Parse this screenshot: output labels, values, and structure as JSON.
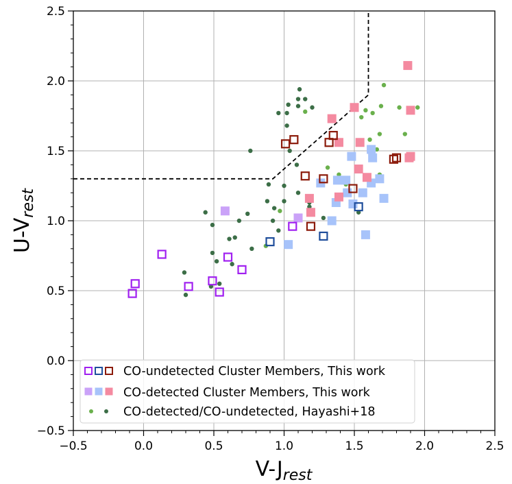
{
  "chart_data": {
    "type": "scatter",
    "title": "",
    "xlabel": {
      "main": "V-J",
      "sub": "rest"
    },
    "ylabel": {
      "main": "U-V",
      "sub": "rest"
    },
    "xlim": [
      -0.5,
      2.5
    ],
    "ylim": [
      -0.5,
      2.5
    ],
    "xticks": [
      -0.5,
      0.0,
      0.5,
      1.0,
      1.5,
      2.0,
      2.5
    ],
    "yticks": [
      -0.5,
      0.0,
      0.5,
      1.0,
      1.5,
      2.0,
      2.5
    ],
    "xtick_labels": [
      "−0.5",
      "0.0",
      "0.5",
      "1.0",
      "1.5",
      "2.0",
      "2.5"
    ],
    "ytick_labels": [
      "−0.5",
      "0.0",
      "0.5",
      "1.0",
      "1.5",
      "2.0",
      "2.5"
    ],
    "minor_tick_step": 0.1,
    "grid": true,
    "legend_position": "lower-left",
    "boundary": {
      "style": "dashed",
      "color": "#000000",
      "points": [
        [
          -0.5,
          1.3
        ],
        [
          0.92,
          1.3
        ],
        [
          1.6,
          1.9
        ],
        [
          1.6,
          2.5
        ]
      ]
    },
    "legend": [
      {
        "label": "CO-undetected Cluster Members, This work",
        "marker": "open-square",
        "colors": [
          "#a020f0",
          "#1f4e9b",
          "#8b1a0a"
        ]
      },
      {
        "label": "CO-detected Cluster Members, This work",
        "marker": "filled-square",
        "colors": [
          "#caa2f8",
          "#a7c3fa",
          "#f48aa0"
        ]
      },
      {
        "label": "CO-detected/CO-undetected, Hayashi+18",
        "marker": "dot",
        "colors": [
          "#6ab04c",
          "#3c6e47"
        ]
      }
    ],
    "series": [
      {
        "name": "Hayashi+18 CO-undetected",
        "marker": "dot",
        "color": "#3c6e47",
        "points": [
          [
            1.11,
            1.94
          ],
          [
            1.1,
            1.87
          ],
          [
            1.15,
            1.87
          ],
          [
            1.03,
            1.83
          ],
          [
            1.1,
            1.82
          ],
          [
            1.2,
            1.81
          ],
          [
            0.96,
            1.77
          ],
          [
            1.02,
            1.77
          ],
          [
            1.02,
            1.68
          ],
          [
            0.76,
            1.5
          ],
          [
            1.04,
            1.5
          ],
          [
            1.09,
            1.4
          ],
          [
            0.89,
            1.26
          ],
          [
            1.0,
            1.25
          ],
          [
            1.1,
            1.2
          ],
          [
            0.88,
            1.14
          ],
          [
            1.0,
            1.14
          ],
          [
            0.93,
            1.09
          ],
          [
            1.18,
            1.13
          ],
          [
            1.18,
            1.1
          ],
          [
            0.44,
            1.06
          ],
          [
            0.74,
            1.05
          ],
          [
            1.28,
            1.02
          ],
          [
            0.68,
            1.0
          ],
          [
            0.92,
            1.0
          ],
          [
            0.49,
            0.97
          ],
          [
            0.96,
            0.93
          ],
          [
            0.61,
            0.87
          ],
          [
            0.65,
            0.88
          ],
          [
            0.77,
            0.8
          ],
          [
            0.49,
            0.77
          ],
          [
            0.52,
            0.71
          ],
          [
            0.63,
            0.69
          ],
          [
            0.29,
            0.63
          ],
          [
            0.54,
            0.55
          ],
          [
            0.48,
            0.53
          ],
          [
            0.3,
            0.47
          ],
          [
            1.53,
            1.06
          ]
        ]
      },
      {
        "name": "Hayashi+18 CO-detected",
        "marker": "dot",
        "color": "#6ab04c",
        "points": [
          [
            1.71,
            1.97
          ],
          [
            1.15,
            1.78
          ],
          [
            1.58,
            1.79
          ],
          [
            1.63,
            1.77
          ],
          [
            1.69,
            1.82
          ],
          [
            1.82,
            1.81
          ],
          [
            1.95,
            1.81
          ],
          [
            1.55,
            1.74
          ],
          [
            1.68,
            1.62
          ],
          [
            1.86,
            1.62
          ],
          [
            1.61,
            1.58
          ],
          [
            1.66,
            1.51
          ],
          [
            1.31,
            1.38
          ],
          [
            1.39,
            1.33
          ],
          [
            1.68,
            1.33
          ],
          [
            1.44,
            1.26
          ],
          [
            0.97,
            1.07
          ],
          [
            0.87,
            0.82
          ]
        ]
      },
      {
        "name": "CO-detected (light purple)",
        "marker": "filled-square",
        "color": "#caa2f8",
        "points": [
          [
            0.58,
            1.07
          ],
          [
            1.1,
            1.02
          ]
        ]
      },
      {
        "name": "CO-detected (light blue)",
        "marker": "filled-square",
        "color": "#a7c3fa",
        "points": [
          [
            1.26,
            1.27
          ],
          [
            1.38,
            1.29
          ],
          [
            1.44,
            1.29
          ],
          [
            1.62,
            1.27
          ],
          [
            1.68,
            1.3
          ],
          [
            1.45,
            1.2
          ],
          [
            1.56,
            1.2
          ],
          [
            1.37,
            1.13
          ],
          [
            1.49,
            1.12
          ],
          [
            1.71,
            1.16
          ],
          [
            1.62,
            1.51
          ],
          [
            1.48,
            1.46
          ],
          [
            1.63,
            1.45
          ],
          [
            1.34,
            1.0
          ],
          [
            1.58,
            0.9
          ],
          [
            1.03,
            0.83
          ]
        ]
      },
      {
        "name": "CO-detected (pink)",
        "marker": "filled-square",
        "color": "#f48aa0",
        "points": [
          [
            1.88,
            2.11
          ],
          [
            1.5,
            1.81
          ],
          [
            1.34,
            1.73
          ],
          [
            1.9,
            1.79
          ],
          [
            1.39,
            1.56
          ],
          [
            1.54,
            1.56
          ],
          [
            1.53,
            1.37
          ],
          [
            1.89,
            1.45
          ],
          [
            1.9,
            1.46
          ],
          [
            1.59,
            1.31
          ],
          [
            1.18,
            1.16
          ],
          [
            1.39,
            1.17
          ],
          [
            1.19,
            1.06
          ]
        ]
      },
      {
        "name": "CO-undetected (purple)",
        "marker": "open-square",
        "color": "#a020f0",
        "points": [
          [
            -0.06,
            0.55
          ],
          [
            -0.08,
            0.48
          ],
          [
            0.13,
            0.76
          ],
          [
            0.32,
            0.53
          ],
          [
            0.49,
            0.57
          ],
          [
            0.54,
            0.49
          ],
          [
            0.6,
            0.74
          ],
          [
            0.7,
            0.65
          ],
          [
            1.06,
            0.96
          ]
        ]
      },
      {
        "name": "CO-undetected (dark blue)",
        "marker": "open-square",
        "color": "#1f4e9b",
        "points": [
          [
            0.9,
            0.85
          ],
          [
            1.28,
            0.89
          ],
          [
            1.53,
            1.1
          ]
        ]
      },
      {
        "name": "CO-undetected (dark red)",
        "marker": "open-square",
        "color": "#8b1a0a",
        "points": [
          [
            1.01,
            1.55
          ],
          [
            1.07,
            1.58
          ],
          [
            1.15,
            1.32
          ],
          [
            1.28,
            1.3
          ],
          [
            1.19,
            0.96
          ],
          [
            1.35,
            1.61
          ],
          [
            1.32,
            1.56
          ],
          [
            1.49,
            1.23
          ],
          [
            1.78,
            1.44
          ],
          [
            1.8,
            1.45
          ]
        ]
      }
    ]
  }
}
